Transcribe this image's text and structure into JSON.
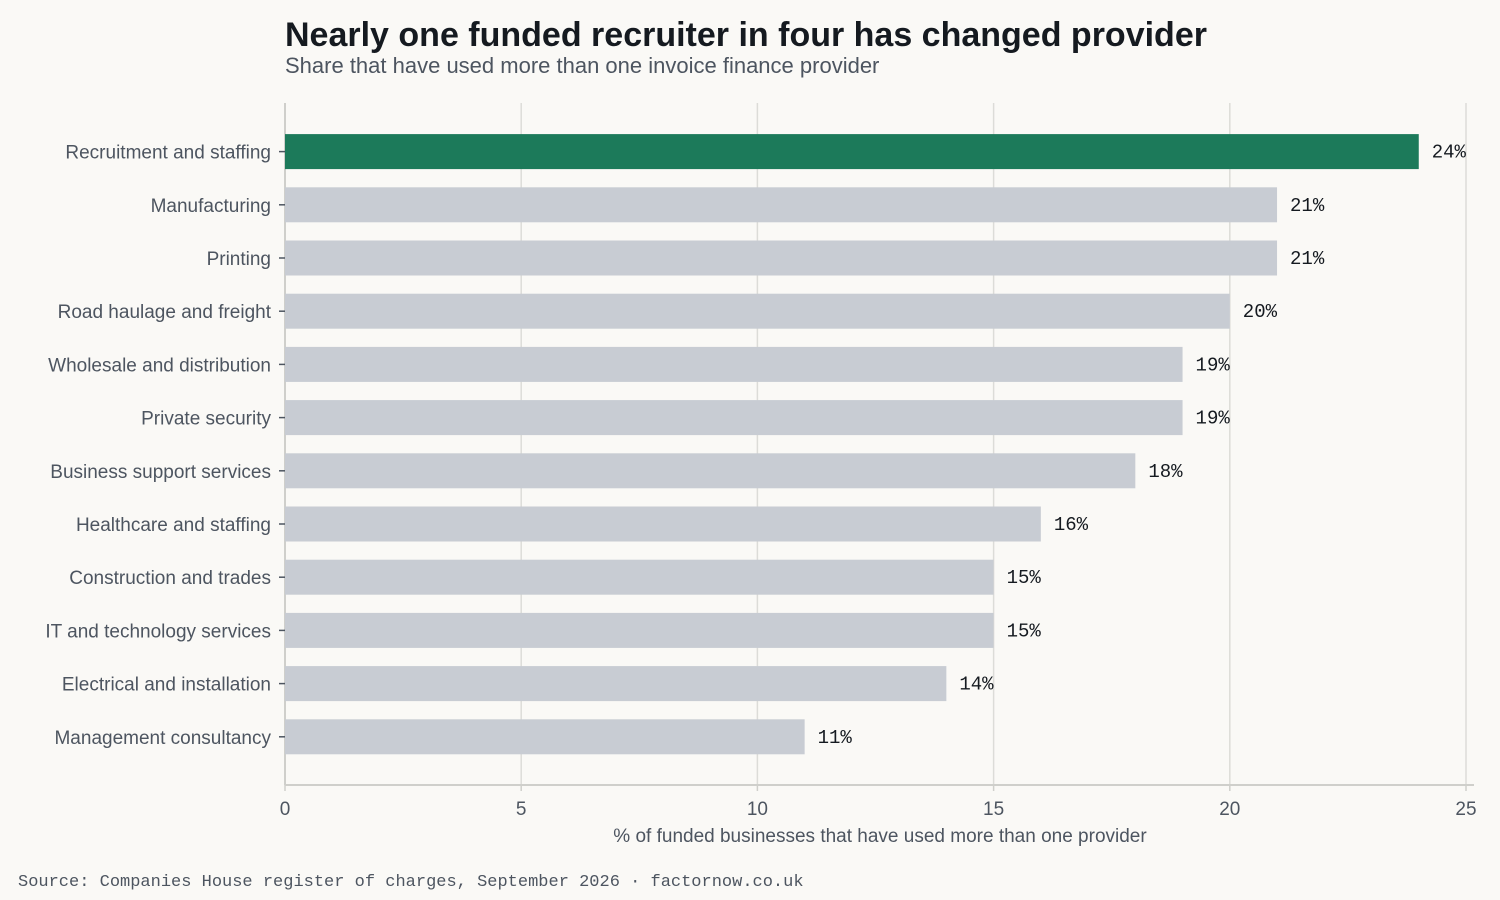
{
  "header": {
    "title": "Nearly one funded recruiter in four has changed provider",
    "subtitle": "Share that have used more than one invoice finance provider"
  },
  "footer": {
    "source": "Source: Companies House register of charges, September 2026 · factornow.co.uk"
  },
  "colors": {
    "highlight": "#1c7a5a",
    "bar": "#c8ccd3",
    "grid": "#dcdcd8",
    "axis": "#cfcfcb",
    "text": "#4d5560"
  },
  "chart_data": {
    "type": "bar",
    "orientation": "horizontal",
    "title": "Nearly one funded recruiter in four has changed provider",
    "subtitle": "Share that have used more than one invoice finance provider",
    "xlabel": "% of funded businesses that have used more than one provider",
    "ylabel": "",
    "xlim": [
      0,
      25
    ],
    "xticks": [
      0,
      5,
      10,
      15,
      20,
      25
    ],
    "grid": true,
    "value_suffix": "%",
    "highlight_category": "Recruitment and staffing",
    "categories": [
      "Recruitment and staffing",
      "Manufacturing",
      "Printing",
      "Road haulage and freight",
      "Wholesale and distribution",
      "Private security",
      "Business support services",
      "Healthcare and staffing",
      "Construction and trades",
      "IT and technology services",
      "Electrical and installation",
      "Management consultancy"
    ],
    "values": [
      24,
      21,
      21,
      20,
      19,
      19,
      18,
      16,
      15,
      15,
      14,
      11
    ]
  }
}
